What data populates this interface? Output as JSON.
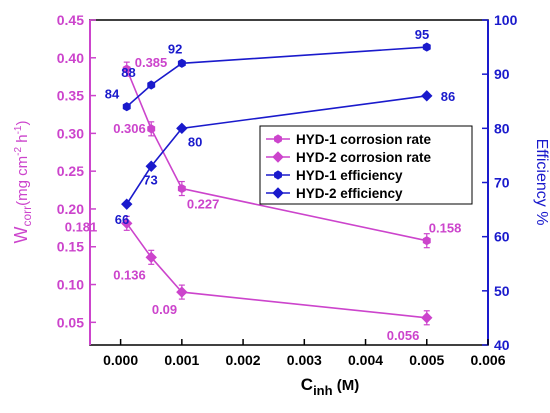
{
  "chart_data": {
    "type": "line",
    "x_axis": {
      "label_main": "C",
      "label_sub": "inh",
      "label_unit": " (M)",
      "range": [
        -0.0005,
        0.006
      ],
      "ticks": [
        0.0,
        0.001,
        0.002,
        0.003,
        0.004,
        0.005,
        0.006
      ],
      "tick_labels": [
        "0.000",
        "0.001",
        "0.002",
        "0.003",
        "0.004",
        "0.005",
        "0.006"
      ]
    },
    "y_left": {
      "label_main": "W",
      "label_sub": "corr",
      "label_unit": "(mg cm",
      "label_sup1": "-2",
      "label_mid": " h",
      "label_sup2": "-1",
      "label_end": ")",
      "range": [
        0.02,
        0.45
      ],
      "ticks": [
        0.05,
        0.1,
        0.15,
        0.2,
        0.25,
        0.3,
        0.35,
        0.4,
        0.45
      ],
      "tick_labels": [
        "0.05",
        "0.10",
        "0.15",
        "0.20",
        "0.25",
        "0.30",
        "0.35",
        "0.40",
        "0.45"
      ],
      "color": "#cc44cc"
    },
    "y_right": {
      "label": "Efficiency %",
      "range": [
        40,
        100
      ],
      "ticks": [
        40,
        50,
        60,
        70,
        80,
        90,
        100
      ],
      "tick_labels": [
        "40",
        "50",
        "60",
        "70",
        "80",
        "90",
        "100"
      ],
      "color": "#1a1acc"
    },
    "series": [
      {
        "name": "HYD-1 corrosion rate",
        "axis": "left",
        "color": "#cc44cc",
        "marker": "hexagon",
        "x": [
          0.0001,
          0.0005,
          0.001,
          0.005
        ],
        "y": [
          0.385,
          0.306,
          0.227,
          0.158
        ],
        "labels": [
          "0.385",
          "0.306",
          "0.227",
          "0.158"
        ]
      },
      {
        "name": "HYD-2 corrosion rate",
        "axis": "left",
        "color": "#cc44cc",
        "marker": "diamond",
        "x": [
          0.0001,
          0.0005,
          0.001,
          0.005
        ],
        "y": [
          0.181,
          0.136,
          0.09,
          0.056
        ],
        "labels": [
          "0.181",
          "0.136",
          "0.09",
          "0.056"
        ]
      },
      {
        "name": "HYD-1 efficiency",
        "axis": "right",
        "color": "#1a1acc",
        "marker": "hexagon",
        "x": [
          0.0001,
          0.0005,
          0.001,
          0.005
        ],
        "y": [
          84,
          88,
          92,
          95
        ],
        "labels": [
          "84",
          "88",
          "92",
          "95"
        ]
      },
      {
        "name": "HYD-2 efficiency",
        "axis": "right",
        "color": "#1a1acc",
        "marker": "diamond",
        "x": [
          0.0001,
          0.0005,
          0.001,
          0.005
        ],
        "y": [
          66,
          73,
          80,
          86
        ],
        "labels": [
          "66",
          "73",
          "80",
          "86"
        ]
      }
    ],
    "legend_position": "center-right",
    "grid": false
  }
}
